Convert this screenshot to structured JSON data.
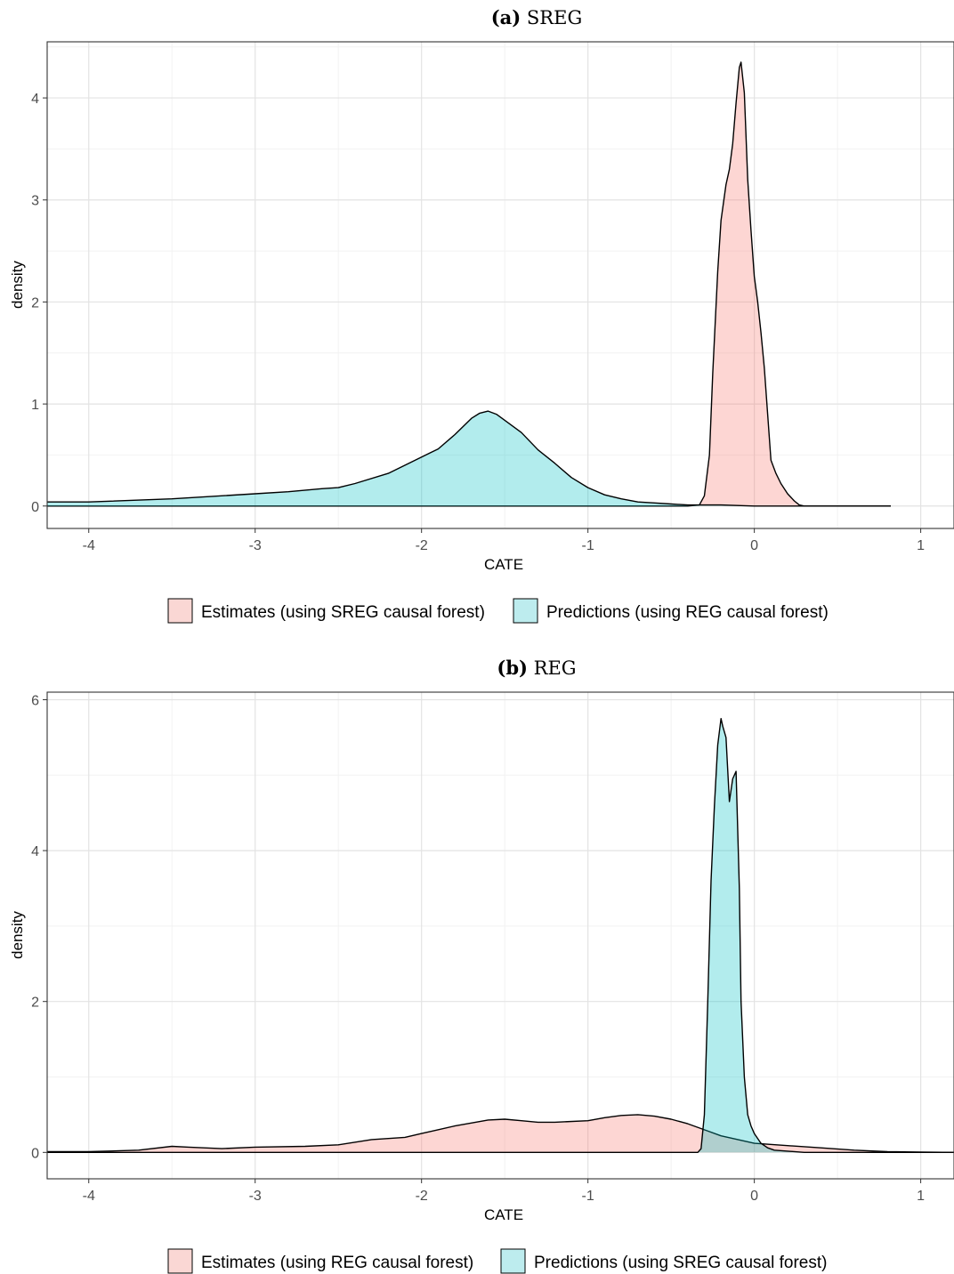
{
  "chart_data": [
    {
      "type": "area",
      "panel_label": "(a)",
      "title": "SREG",
      "xlabel": "CATE",
      "ylabel": "density",
      "xlim": [
        -4.25,
        1.2
      ],
      "ylim": [
        -0.22,
        4.55
      ],
      "xticks": [
        -4,
        -3,
        -2,
        -1,
        0,
        1
      ],
      "xtick_labels": [
        "-4",
        "-3",
        "-2",
        "-1",
        "0",
        "1"
      ],
      "yticks": [
        0,
        1,
        2,
        3,
        4
      ],
      "ytick_labels": [
        "0",
        "1",
        "2",
        "3",
        "4"
      ],
      "grid": true,
      "legend_position": "bottom",
      "series": [
        {
          "name": "Estimates (using SREG causal forest)",
          "color": "#F8766D",
          "fill": "#FAD7D4",
          "x": [
            -4.25,
            -0.6,
            -0.4,
            -0.33,
            -0.3,
            -0.27,
            -0.25,
            -0.22,
            -0.2,
            -0.17,
            -0.15,
            -0.13,
            -0.11,
            -0.09,
            -0.08,
            -0.06,
            -0.04,
            -0.02,
            0,
            0.02,
            0.04,
            0.06,
            0.08,
            0.1,
            0.13,
            0.16,
            0.2,
            0.24,
            0.27,
            0.3,
            0.5,
            0.82
          ],
          "y": [
            0,
            0,
            0,
            0.01,
            0.1,
            0.5,
            1.3,
            2.3,
            2.8,
            3.15,
            3.3,
            3.55,
            3.95,
            4.3,
            4.35,
            4.05,
            3.2,
            2.7,
            2.25,
            2.0,
            1.7,
            1.35,
            0.9,
            0.45,
            0.32,
            0.22,
            0.12,
            0.05,
            0.01,
            0,
            0,
            0
          ]
        },
        {
          "name": "Predictions (using REG causal forest)",
          "color": "#00BFC4",
          "fill": "#BDECEE",
          "x": [
            -4.25,
            -4.0,
            -3.5,
            -3.0,
            -2.8,
            -2.6,
            -2.5,
            -2.4,
            -2.2,
            -2.0,
            -1.9,
            -1.8,
            -1.7,
            -1.65,
            -1.6,
            -1.55,
            -1.5,
            -1.4,
            -1.3,
            -1.2,
            -1.1,
            -1.0,
            -0.9,
            -0.8,
            -0.7,
            -0.6,
            -0.5,
            -0.4,
            -0.3,
            -0.2,
            0,
            0.5,
            0.82
          ],
          "y": [
            0.04,
            0.04,
            0.07,
            0.12,
            0.14,
            0.17,
            0.18,
            0.22,
            0.32,
            0.48,
            0.56,
            0.7,
            0.86,
            0.91,
            0.93,
            0.9,
            0.84,
            0.72,
            0.55,
            0.42,
            0.28,
            0.18,
            0.11,
            0.07,
            0.04,
            0.03,
            0.02,
            0.01,
            0.01,
            0.01,
            0,
            0,
            0
          ]
        }
      ]
    },
    {
      "type": "area",
      "panel_label": "(b)",
      "title": "REG",
      "xlabel": "CATE",
      "ylabel": "density",
      "xlim": [
        -4.25,
        1.2
      ],
      "ylim": [
        -0.35,
        6.1
      ],
      "xticks": [
        -4,
        -3,
        -2,
        -1,
        0,
        1
      ],
      "xtick_labels": [
        "-4",
        "-3",
        "-2",
        "-1",
        "0",
        "1"
      ],
      "yticks": [
        0,
        2,
        4,
        6
      ],
      "ytick_labels": [
        "0",
        "2",
        "4",
        "6"
      ],
      "grid": true,
      "legend_position": "bottom",
      "series": [
        {
          "name": "Estimates (using REG causal forest)",
          "color": "#F8766D",
          "fill": "#FAD7D4",
          "x": [
            -4.25,
            -4.0,
            -3.7,
            -3.5,
            -3.4,
            -3.2,
            -3.0,
            -2.7,
            -2.5,
            -2.3,
            -2.1,
            -2.0,
            -1.8,
            -1.6,
            -1.5,
            -1.4,
            -1.3,
            -1.2,
            -1.0,
            -0.9,
            -0.8,
            -0.7,
            -0.6,
            -0.5,
            -0.4,
            -0.3,
            -0.2,
            0,
            0.2,
            0.4,
            0.6,
            0.8,
            1.0,
            1.2
          ],
          "y": [
            0.01,
            0.01,
            0.03,
            0.08,
            0.07,
            0.05,
            0.07,
            0.08,
            0.1,
            0.17,
            0.2,
            0.25,
            0.35,
            0.43,
            0.44,
            0.42,
            0.4,
            0.4,
            0.42,
            0.46,
            0.49,
            0.5,
            0.48,
            0.44,
            0.38,
            0.3,
            0.22,
            0.12,
            0.09,
            0.06,
            0.03,
            0.01,
            0.005,
            0
          ]
        },
        {
          "name": "Predictions (using SREG causal forest)",
          "color": "#00BFC4",
          "fill": "#BDECEE",
          "x": [
            -4.25,
            -0.4,
            -0.34,
            -0.32,
            -0.3,
            -0.28,
            -0.26,
            -0.24,
            -0.22,
            -0.2,
            -0.19,
            -0.17,
            -0.15,
            -0.13,
            -0.11,
            -0.09,
            -0.08,
            -0.06,
            -0.04,
            -0.02,
            0,
            0.04,
            0.08,
            0.12,
            0.3,
            0.6,
            1.2
          ],
          "y": [
            0,
            0,
            0,
            0.05,
            0.5,
            2.0,
            3.6,
            4.6,
            5.4,
            5.75,
            5.65,
            5.5,
            4.65,
            4.95,
            5.05,
            3.5,
            2.0,
            1.0,
            0.5,
            0.35,
            0.25,
            0.12,
            0.06,
            0.03,
            0,
            0,
            0
          ]
        }
      ]
    }
  ]
}
